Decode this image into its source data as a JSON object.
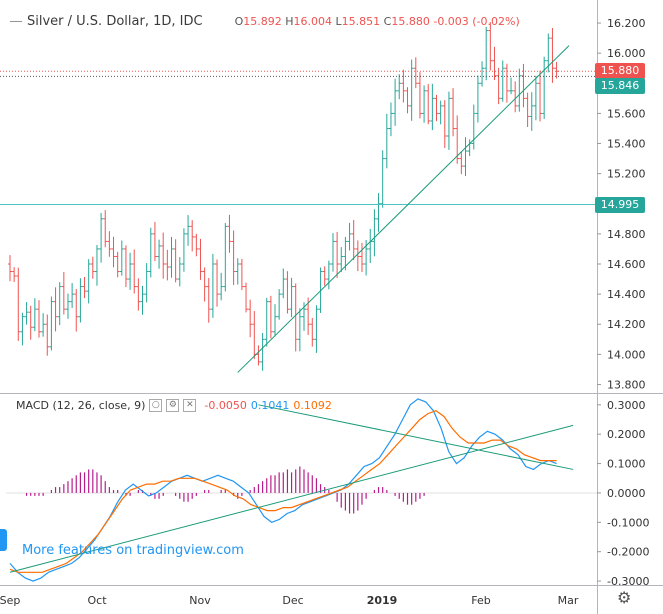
{
  "header": {
    "symbol": "Silver / U.S. Dollar, 1D, IDC",
    "open_label": "O",
    "open": "15.892",
    "high_label": "H",
    "high": "16.004",
    "low_label": "L",
    "low": "15.851",
    "close_label": "C",
    "close": "15.880",
    "change": "-0.003 (-0.02%)"
  },
  "macd_header": {
    "title": "MACD (12, 26, close, 9)",
    "hist": "-0.0050",
    "macd": "0.1041",
    "signal": "0.1092"
  },
  "promo": "More features on tradingview.com",
  "colors": {
    "up": "#26a69a",
    "down": "#ef5350",
    "macd_line": "#2196f3",
    "signal_line": "#ff6d00",
    "hist": "#b71c8d",
    "trend": "#1a9b79",
    "level": "#4fc3c0",
    "tag_price": "#ef5350",
    "tag_level": "#26a69a"
  },
  "chart_data": [
    {
      "type": "candlestick",
      "title": "Silver / U.S. Dollar, 1D, IDC",
      "x_labels": [
        "Sep",
        "Oct",
        "Nov",
        "Dec",
        "2019",
        "Feb",
        "Mar"
      ],
      "ylim": [
        13.75,
        16.3
      ],
      "y_ticks": [
        "13.800",
        "14.000",
        "14.200",
        "14.400",
        "14.600",
        "14.800",
        "15.000",
        "15.200",
        "15.400",
        "15.600",
        "15.800",
        "16.000",
        "16.200"
      ],
      "closes": [
        14.55,
        14.52,
        14.15,
        14.25,
        14.28,
        14.18,
        14.3,
        14.15,
        14.2,
        14.05,
        14.35,
        14.25,
        14.45,
        14.3,
        14.35,
        14.4,
        14.25,
        14.45,
        14.42,
        14.6,
        14.55,
        14.7,
        14.9,
        14.75,
        14.7,
        14.65,
        14.55,
        14.7,
        14.5,
        14.6,
        14.45,
        14.35,
        14.4,
        14.55,
        14.8,
        14.65,
        14.72,
        14.6,
        14.58,
        14.7,
        14.5,
        14.6,
        14.8,
        14.85,
        14.78,
        14.7,
        14.55,
        14.45,
        14.3,
        14.6,
        14.4,
        14.45,
        14.85,
        14.75,
        14.55,
        14.6,
        14.45,
        14.3,
        14.2,
        14.0,
        13.95,
        14.1,
        14.35,
        14.15,
        14.25,
        14.4,
        14.5,
        14.3,
        14.45,
        14.1,
        14.25,
        14.3,
        14.2,
        14.1,
        14.3,
        14.55,
        14.5,
        14.6,
        14.75,
        14.6,
        14.65,
        14.75,
        14.8,
        14.7,
        14.65,
        14.6,
        14.7,
        14.75,
        14.9,
        15.0,
        15.3,
        15.5,
        15.6,
        15.75,
        15.8,
        15.75,
        15.65,
        15.9,
        15.8,
        15.6,
        15.75,
        15.55,
        15.7,
        15.6,
        15.65,
        15.45,
        15.7,
        15.5,
        15.3,
        15.25,
        15.35,
        15.4,
        15.6,
        15.8,
        15.9,
        16.15,
        15.95,
        15.85,
        15.7,
        15.9,
        15.75,
        15.75,
        15.65,
        15.85,
        15.7,
        15.58,
        15.65,
        15.8,
        15.6,
        15.95,
        16.1,
        15.9,
        15.88
      ],
      "trendline": {
        "from": [
          55,
          13.88
        ],
        "to": [
          135,
          16.05
        ]
      },
      "levels": [
        15.88,
        15.846,
        14.995
      ],
      "price_tags": [
        "15.880",
        "15.846",
        "14.995"
      ]
    },
    {
      "type": "line",
      "title": "MACD (12, 26, close, 9)",
      "ylim": [
        -0.31,
        0.33
      ],
      "y_ticks": [
        "-0.3000",
        "-0.2000",
        "-0.1000",
        "0.0000",
        "0.1000",
        "0.2000",
        "0.3000"
      ],
      "series": [
        {
          "name": "MACD",
          "values": [
            -0.24,
            -0.27,
            -0.29,
            -0.3,
            -0.29,
            -0.27,
            -0.26,
            -0.25,
            -0.24,
            -0.22,
            -0.19,
            -0.16,
            -0.12,
            -0.08,
            -0.03,
            0.01,
            0.03,
            0.01,
            -0.01,
            0.0,
            0.02,
            0.04,
            0.05,
            0.06,
            0.05,
            0.04,
            0.05,
            0.06,
            0.05,
            0.04,
            0.02,
            0.0,
            -0.04,
            -0.08,
            -0.1,
            -0.09,
            -0.07,
            -0.06,
            -0.04,
            -0.03,
            -0.02,
            -0.01,
            0.0,
            0.01,
            0.03,
            0.06,
            0.09,
            0.1,
            0.12,
            0.16,
            0.2,
            0.25,
            0.3,
            0.32,
            0.31,
            0.28,
            0.22,
            0.14,
            0.1,
            0.12,
            0.16,
            0.19,
            0.21,
            0.2,
            0.18,
            0.15,
            0.13,
            0.09,
            0.08,
            0.1,
            0.11,
            0.1
          ]
        },
        {
          "name": "Signal",
          "values": [
            -0.26,
            -0.27,
            -0.27,
            -0.27,
            -0.27,
            -0.26,
            -0.25,
            -0.24,
            -0.22,
            -0.2,
            -0.17,
            -0.14,
            -0.1,
            -0.06,
            -0.02,
            0.01,
            0.02,
            0.03,
            0.03,
            0.04,
            0.04,
            0.05,
            0.05,
            0.05,
            0.04,
            0.03,
            0.02,
            0.01,
            -0.01,
            -0.02,
            -0.04,
            -0.05,
            -0.06,
            -0.06,
            -0.05,
            -0.05,
            -0.04,
            -0.03,
            -0.02,
            -0.01,
            0.0,
            0.01,
            0.02,
            0.04,
            0.06,
            0.08,
            0.1,
            0.13,
            0.16,
            0.19,
            0.22,
            0.25,
            0.27,
            0.28,
            0.26,
            0.22,
            0.19,
            0.17,
            0.17,
            0.17,
            0.18,
            0.18,
            0.16,
            0.15,
            0.13,
            0.12,
            0.11,
            0.11,
            0.11
          ]
        },
        {
          "name": "Histogram",
          "values": [
            0.0,
            0.0,
            0.0,
            0.0,
            -0.01,
            -0.01,
            -0.01,
            -0.01,
            -0.01,
            0.0,
            0.01,
            0.02,
            0.02,
            0.03,
            0.04,
            0.05,
            0.06,
            0.07,
            0.07,
            0.08,
            0.08,
            0.07,
            0.06,
            0.04,
            0.02,
            0.01,
            0.01,
            0.0,
            -0.01,
            -0.01,
            0.0,
            0.01,
            0.01,
            0.0,
            -0.01,
            -0.02,
            -0.02,
            -0.01,
            0.0,
            0.0,
            -0.01,
            -0.02,
            -0.03,
            -0.03,
            -0.02,
            -0.01,
            0.0,
            0.01,
            0.01,
            0.0,
            0.0,
            0.01,
            0.01,
            0.0,
            -0.01,
            -0.02,
            -0.01,
            0.0,
            0.01,
            0.02,
            0.03,
            0.04,
            0.05,
            0.06,
            0.06,
            0.07,
            0.07,
            0.08,
            0.07,
            0.08,
            0.09,
            0.08,
            0.07,
            0.06,
            0.05,
            0.03,
            0.02,
            0.01,
            0.0,
            -0.03,
            -0.05,
            -0.06,
            -0.07,
            -0.07,
            -0.06,
            -0.04,
            -0.02,
            0.0,
            0.01,
            0.02,
            0.02,
            0.01,
            0.0,
            -0.01,
            -0.02,
            -0.03,
            -0.04,
            -0.04,
            -0.03,
            -0.02,
            -0.01,
            0.0,
            0.0
          ]
        }
      ],
      "trendlines": [
        {
          "from": [
            0,
            -0.27
          ],
          "to": [
            136,
            0.23
          ]
        },
        {
          "from": [
            60,
            0.3
          ],
          "to": [
            136,
            0.08
          ]
        }
      ]
    }
  ]
}
